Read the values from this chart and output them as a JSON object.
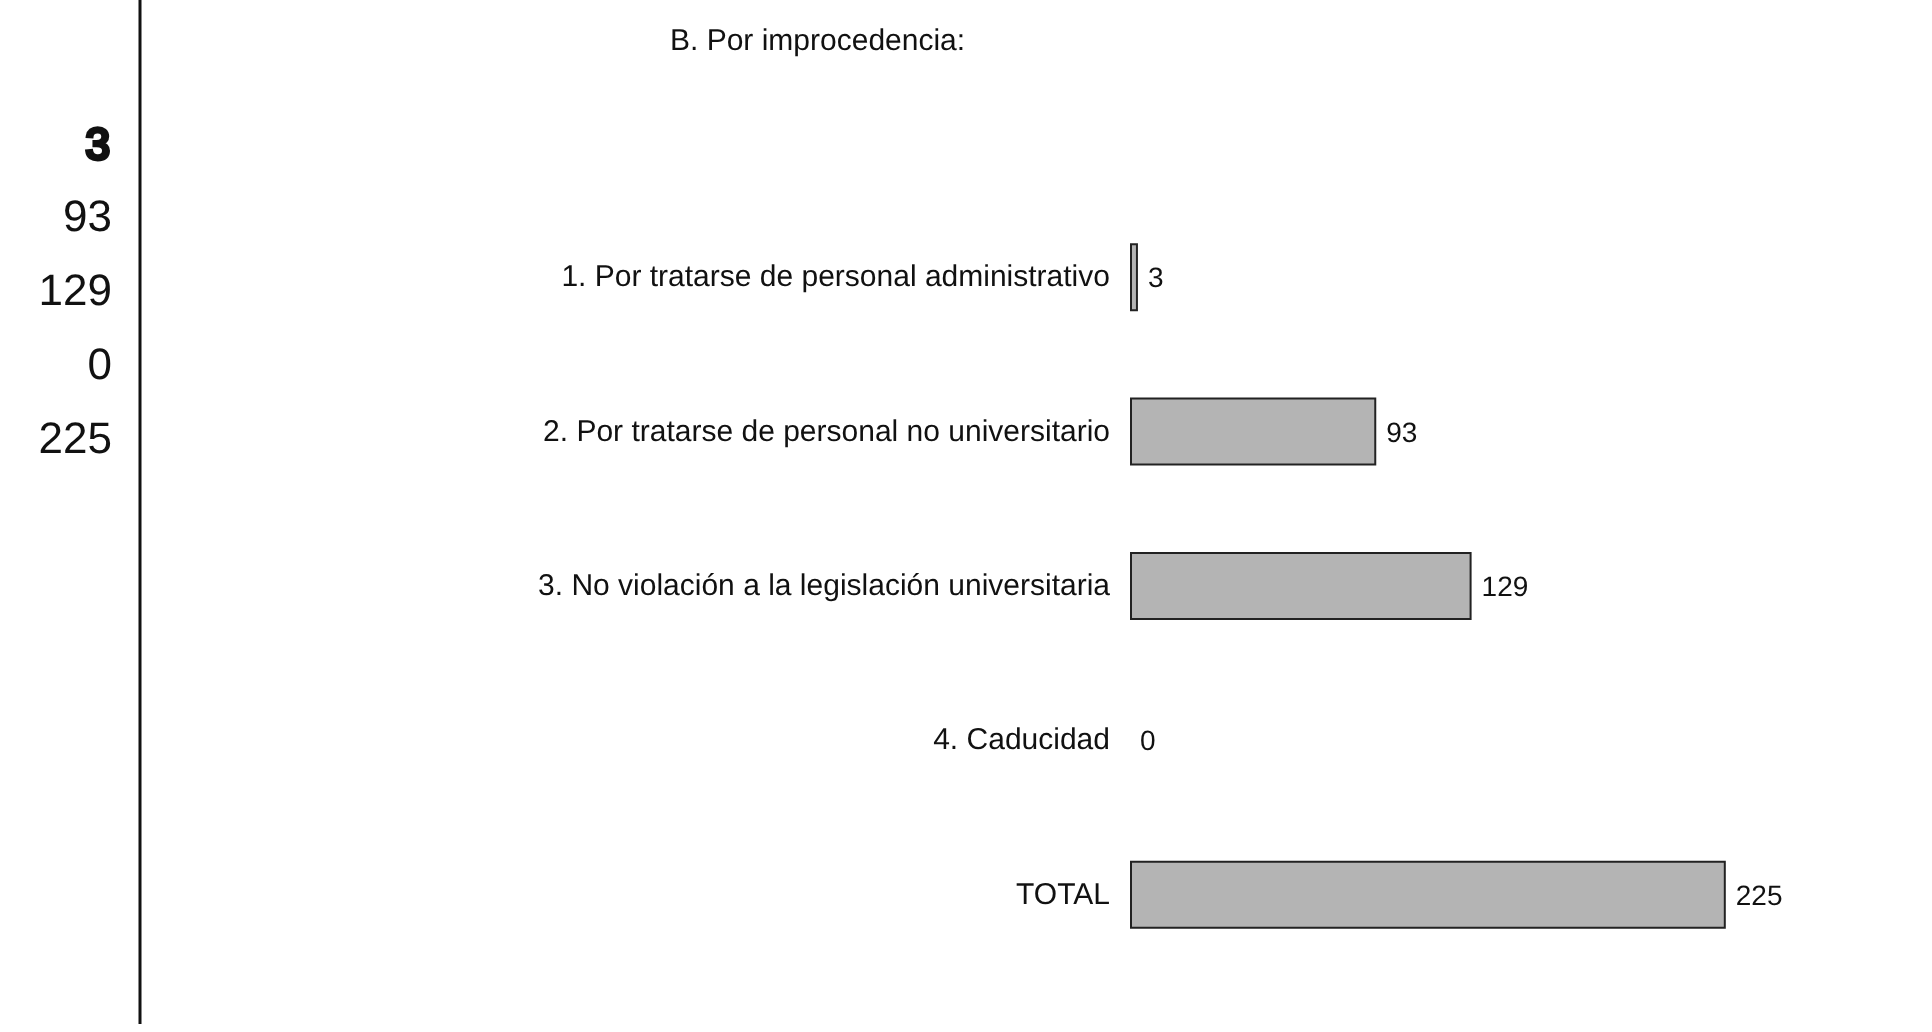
{
  "chart_data": {
    "type": "bar",
    "orientation": "horizontal",
    "title": "B. Por improcedencia:",
    "categories": [
      "1. Por tratarse de personal administrativo",
      "2. Por tratarse de personal no universitario",
      "3. No violación a la legislación universitaria",
      "4. Caducidad",
      "TOTAL"
    ],
    "values": [
      3,
      93,
      129,
      0,
      225
    ],
    "color": "#b4b4b4",
    "data_labels": true,
    "annotations": [
      "3",
      "93",
      "129",
      "0",
      "225"
    ]
  }
}
